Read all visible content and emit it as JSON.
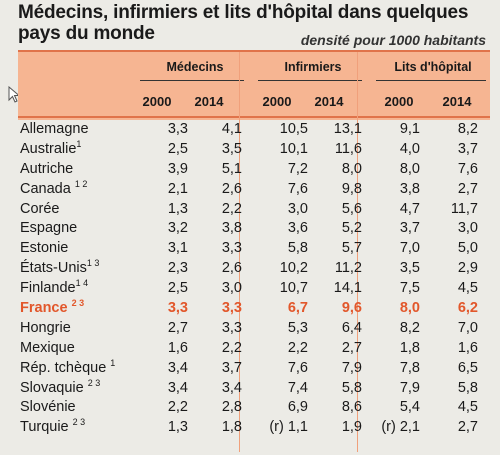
{
  "title": "Médecins, infirmiers et lits d'hôpital dans quelques pays du monde",
  "subtitle": "densité pour 1000 habitants",
  "groups": [
    "Médecins",
    "Infirmiers",
    "Lits d'hôpital"
  ],
  "years": [
    "2000",
    "2014",
    "2000",
    "2014",
    "2000",
    "2014"
  ],
  "rows": [
    {
      "country": "Allemagne",
      "note": "",
      "values": [
        "3,3",
        "4,1",
        "10,5",
        "13,1",
        "9,1",
        "8,2"
      ]
    },
    {
      "country": "Australie",
      "note": "1",
      "values": [
        "2,5",
        "3,5",
        "10,1",
        "11,6",
        "4,0",
        "3,7"
      ]
    },
    {
      "country": "Autriche",
      "note": "",
      "values": [
        "3,9",
        "5,1",
        "7,2",
        "8,0",
        "8,0",
        "7,6"
      ]
    },
    {
      "country": "Canada ",
      "note": "1 2",
      "values": [
        "2,1",
        "2,6",
        "7,6",
        "9,8",
        "3,8",
        "2,7"
      ]
    },
    {
      "country": "Corée",
      "note": "",
      "values": [
        "1,3",
        "2,2",
        "3,0",
        "5,6",
        "4,7",
        "11,7"
      ]
    },
    {
      "country": "Espagne",
      "note": "",
      "values": [
        "3,2",
        "3,8",
        "3,6",
        "5,2",
        "3,7",
        "3,0"
      ]
    },
    {
      "country": "Estonie",
      "note": "",
      "values": [
        "3,1",
        "3,3",
        "5,8",
        "5,7",
        "7,0",
        "5,0"
      ]
    },
    {
      "country": "États-Unis",
      "note": "1 3",
      "values": [
        "2,3",
        "2,6",
        "10,2",
        "11,2",
        "3,5",
        "2,9"
      ]
    },
    {
      "country": "Finlande",
      "note": "1 4",
      "values": [
        "2,5",
        "3,0",
        "10,7",
        "14,1",
        "7,5",
        "4,5"
      ]
    },
    {
      "country": "France ",
      "note": "2 3",
      "values": [
        "3,3",
        "3,3",
        "6,7",
        "9,6",
        "8,0",
        "6,2"
      ],
      "highlight": true
    },
    {
      "country": "Hongrie",
      "note": "",
      "values": [
        "2,7",
        "3,3",
        "5,3",
        "6,4",
        "8,2",
        "7,0"
      ]
    },
    {
      "country": "Mexique",
      "note": "",
      "values": [
        "1,6",
        "2,2",
        "2,2",
        "2,7",
        "1,8",
        "1,6"
      ]
    },
    {
      "country": "Rép. tchèque ",
      "note": "1",
      "values": [
        "3,4",
        "3,7",
        "7,6",
        "7,9",
        "7,8",
        "6,5"
      ]
    },
    {
      "country": "Slovaquie ",
      "note": "2 3",
      "values": [
        "3,4",
        "3,4",
        "7,4",
        "5,8",
        "7,9",
        "5,8"
      ]
    },
    {
      "country": "Slovénie",
      "note": "",
      "values": [
        "2,2",
        "2,8",
        "6,9",
        "8,6",
        "5,4",
        "4,5"
      ]
    },
    {
      "country": "Turquie ",
      "note": "2 3",
      "values": [
        "1,3",
        "1,8",
        "(r) 1,1",
        "1,9",
        "(r) 2,1",
        "2,7"
      ]
    }
  ],
  "colors": {
    "header_bg": "#f6b592",
    "accent": "#e2572b",
    "rule": "#e0734a"
  },
  "icons": {
    "cursor": "mouse-pointer-icon"
  }
}
